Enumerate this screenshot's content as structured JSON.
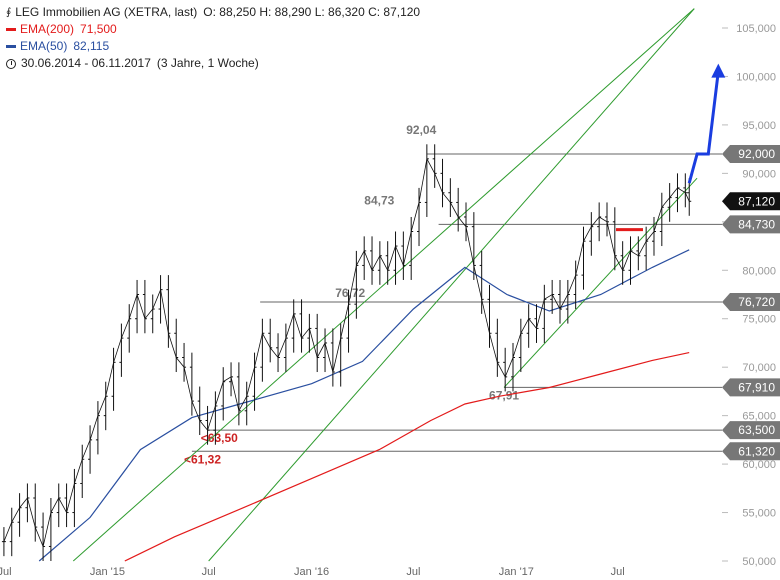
{
  "header": {
    "title": "LEG Immobilien AG (XETRA, last)",
    "ohlc": "O: 88,250  H: 88,290  L: 86,320  C: 87,120",
    "period": "30.06.2014 - 06.11.2017",
    "interval": "(3 Jahre, 1 Woche)"
  },
  "legend": [
    {
      "name": "EMA(200)",
      "value": "71,500",
      "color": "#e31b1b"
    },
    {
      "name": "EMA(50)",
      "value": "82,115",
      "color": "#2a4fa0"
    }
  ],
  "chart_data": {
    "type": "line",
    "ylim": [
      50000,
      107000
    ],
    "y_ticks": [
      {
        "value": 50000,
        "label": "50,000"
      },
      {
        "value": 55000,
        "label": "55,000"
      },
      {
        "value": 60000,
        "label": "60,000"
      },
      {
        "value": 65000,
        "label": "65,000"
      },
      {
        "value": 70000,
        "label": "70,000"
      },
      {
        "value": 75000,
        "label": "75,000"
      },
      {
        "value": 80000,
        "label": "80,000"
      },
      {
        "value": 85000,
        "label": "85,000"
      },
      {
        "value": 90000,
        "label": "90,000"
      },
      {
        "value": 95000,
        "label": "95,000"
      },
      {
        "value": 100000,
        "label": "100,000"
      },
      {
        "value": 105000,
        "label": "105,000"
      }
    ],
    "x_ticks": [
      {
        "date": "2014-07-01",
        "label": "Jul"
      },
      {
        "date": "2015-01-01",
        "label": "Jan '15"
      },
      {
        "date": "2015-07-01",
        "label": "Jul"
      },
      {
        "date": "2016-01-01",
        "label": "Jan '16"
      },
      {
        "date": "2016-07-01",
        "label": "Jul"
      },
      {
        "date": "2017-01-01",
        "label": "Jan '17"
      },
      {
        "date": "2017-07-01",
        "label": "Jul"
      }
    ],
    "price": {
      "name": "LEG Immobilien AG",
      "color": "#111111",
      "points": [
        [
          "2014-06-30",
          52000
        ],
        [
          "2014-07-14",
          54000
        ],
        [
          "2014-07-28",
          55500
        ],
        [
          "2014-08-11",
          56500
        ],
        [
          "2014-08-25",
          53500
        ],
        [
          "2014-09-08",
          51500
        ],
        [
          "2014-09-22",
          55000
        ],
        [
          "2014-10-06",
          56500
        ],
        [
          "2014-10-20",
          55000
        ],
        [
          "2014-11-03",
          58000
        ],
        [
          "2014-11-17",
          60500
        ],
        [
          "2014-12-01",
          62500
        ],
        [
          "2014-12-15",
          65000
        ],
        [
          "2014-12-29",
          67000
        ],
        [
          "2015-01-12",
          70500
        ],
        [
          "2015-01-26",
          73000
        ],
        [
          "2015-02-09",
          75000
        ],
        [
          "2015-02-23",
          77500
        ],
        [
          "2015-03-09",
          75000
        ],
        [
          "2015-03-23",
          76000
        ],
        [
          "2015-04-06",
          78000
        ],
        [
          "2015-04-20",
          73500
        ],
        [
          "2015-05-04",
          71000
        ],
        [
          "2015-05-18",
          70000
        ],
        [
          "2015-06-01",
          66500
        ],
        [
          "2015-06-15",
          64500
        ],
        [
          "2015-06-29",
          63500
        ],
        [
          "2015-07-13",
          66000
        ],
        [
          "2015-07-27",
          68500
        ],
        [
          "2015-08-10",
          69000
        ],
        [
          "2015-08-24",
          65500
        ],
        [
          "2015-09-07",
          67000
        ],
        [
          "2015-09-21",
          70000
        ],
        [
          "2015-10-05",
          73500
        ],
        [
          "2015-10-19",
          72000
        ],
        [
          "2015-11-02",
          71000
        ],
        [
          "2015-11-16",
          73000
        ],
        [
          "2015-11-30",
          75500
        ],
        [
          "2015-12-14",
          73000
        ],
        [
          "2015-12-28",
          74000
        ],
        [
          "2016-01-11",
          71000
        ],
        [
          "2016-01-25",
          72500
        ],
        [
          "2016-02-08",
          69500
        ],
        [
          "2016-02-22",
          73000
        ],
        [
          "2016-03-07",
          76500
        ],
        [
          "2016-03-21",
          80500
        ],
        [
          "2016-04-04",
          82000
        ],
        [
          "2016-04-18",
          80000
        ],
        [
          "2016-05-02",
          81500
        ],
        [
          "2016-05-16",
          80000
        ],
        [
          "2016-05-30",
          82500
        ],
        [
          "2016-06-13",
          80500
        ],
        [
          "2016-06-27",
          84000
        ],
        [
          "2016-07-11",
          87000
        ],
        [
          "2016-07-25",
          91500
        ],
        [
          "2016-08-08",
          90000
        ],
        [
          "2016-08-22",
          88000
        ],
        [
          "2016-09-05",
          87000
        ],
        [
          "2016-09-19",
          85500
        ],
        [
          "2016-10-03",
          84500
        ],
        [
          "2016-10-17",
          80500
        ],
        [
          "2016-10-31",
          77000
        ],
        [
          "2016-11-14",
          73500
        ],
        [
          "2016-11-28",
          70500
        ],
        [
          "2016-12-12",
          69000
        ],
        [
          "2016-12-26",
          71000
        ],
        [
          "2017-01-09",
          73500
        ],
        [
          "2017-01-23",
          75000
        ],
        [
          "2017-02-06",
          74000
        ],
        [
          "2017-02-20",
          77000
        ],
        [
          "2017-03-06",
          77500
        ],
        [
          "2017-03-20",
          76000
        ],
        [
          "2017-04-03",
          77500
        ],
        [
          "2017-04-17",
          79500
        ],
        [
          "2017-05-01",
          83000
        ],
        [
          "2017-05-15",
          84500
        ],
        [
          "2017-05-29",
          85500
        ],
        [
          "2017-06-12",
          85000
        ],
        [
          "2017-06-26",
          81500
        ],
        [
          "2017-07-10",
          80000
        ],
        [
          "2017-07-24",
          82000
        ],
        [
          "2017-08-07",
          81500
        ],
        [
          "2017-08-21",
          83000
        ],
        [
          "2017-09-04",
          84000
        ],
        [
          "2017-09-18",
          86500
        ],
        [
          "2017-10-02",
          87500
        ],
        [
          "2017-10-16",
          88500
        ],
        [
          "2017-10-30",
          88000
        ],
        [
          "2017-11-06",
          87120
        ]
      ]
    },
    "series": [
      {
        "name": "EMA(200)",
        "color": "#e31b1b",
        "points": [
          [
            "2015-02-01",
            50000
          ],
          [
            "2015-05-01",
            52500
          ],
          [
            "2015-09-01",
            55500
          ],
          [
            "2016-01-01",
            58500
          ],
          [
            "2016-05-01",
            61500
          ],
          [
            "2016-08-01",
            64500
          ],
          [
            "2016-10-01",
            66200
          ],
          [
            "2016-12-01",
            67000
          ],
          [
            "2017-03-01",
            67900
          ],
          [
            "2017-06-01",
            69300
          ],
          [
            "2017-09-01",
            70700
          ],
          [
            "2017-11-06",
            71500
          ]
        ]
      },
      {
        "name": "EMA(50)",
        "color": "#2a4fa0",
        "points": [
          [
            "2014-09-01",
            50000
          ],
          [
            "2014-12-01",
            54500
          ],
          [
            "2015-03-01",
            61500
          ],
          [
            "2015-06-01",
            64800
          ],
          [
            "2015-09-01",
            66300
          ],
          [
            "2016-01-01",
            68300
          ],
          [
            "2016-04-01",
            70600
          ],
          [
            "2016-07-01",
            76000
          ],
          [
            "2016-10-01",
            80300
          ],
          [
            "2016-12-15",
            77500
          ],
          [
            "2017-03-01",
            75800
          ],
          [
            "2017-06-01",
            77500
          ],
          [
            "2017-09-01",
            80300
          ],
          [
            "2017-11-06",
            82115
          ]
        ]
      }
    ],
    "trendlines": [
      {
        "name": "channel-upper",
        "color": "#2e9b2e",
        "from": [
          "2014-11-01",
          50000
        ],
        "to": [
          "2017-11-15",
          107000
        ]
      },
      {
        "name": "channel-lower",
        "color": "#2e9b2e",
        "from": [
          "2015-07-01",
          50000
        ],
        "to": [
          "2017-11-15",
          107000
        ]
      },
      {
        "name": "channel-inner",
        "color": "#2e9b2e",
        "from": [
          "2016-12-10",
          67910
        ],
        "to": [
          "2017-11-20",
          89500
        ]
      }
    ],
    "levels": [
      {
        "value": 92000,
        "label": "92,000",
        "from": "2016-07-25",
        "peak_label": "92,04",
        "peak_date": "2016-07-15",
        "peak_color": "#777777"
      },
      {
        "value": 84730,
        "label": "84,730",
        "from": "2016-08-15",
        "peak_label": "84,73",
        "peak_date": "2016-05-01",
        "peak_color": "#777777"
      },
      {
        "value": 76720,
        "label": "76,720",
        "from": "2015-10-01",
        "peak_label": "76,72",
        "peak_date": "2016-03-10",
        "peak_color": "#777777"
      },
      {
        "value": 67910,
        "label": "67,910",
        "from": "2016-12-10",
        "peak_label": "67,91",
        "peak_date": "2016-12-10",
        "peak_color": "#777777"
      },
      {
        "value": 63500,
        "label": "63,500",
        "from": "2015-07-01",
        "peak_label": "<63,50",
        "peak_date": "2015-07-20",
        "peak_color": "#cc2222"
      },
      {
        "value": 61320,
        "label": "61,320",
        "from": "2015-06-01",
        "peak_label": "<61,32",
        "peak_date": "2015-06-20",
        "peak_color": "#cc2222"
      }
    ],
    "last_price": {
      "value": 87120,
      "label": "87,120"
    },
    "forecast_arrow": {
      "color": "#1a3de0",
      "points": [
        [
          "2017-11-06",
          89000
        ],
        [
          "2017-11-20",
          92000
        ],
        [
          "2017-12-10",
          92000
        ],
        [
          "2017-12-28",
          100500
        ]
      ]
    },
    "stop_marker": {
      "color": "#e31b1b",
      "from": "2017-11-01",
      "to": "2017-12-01",
      "value": 84200
    }
  }
}
